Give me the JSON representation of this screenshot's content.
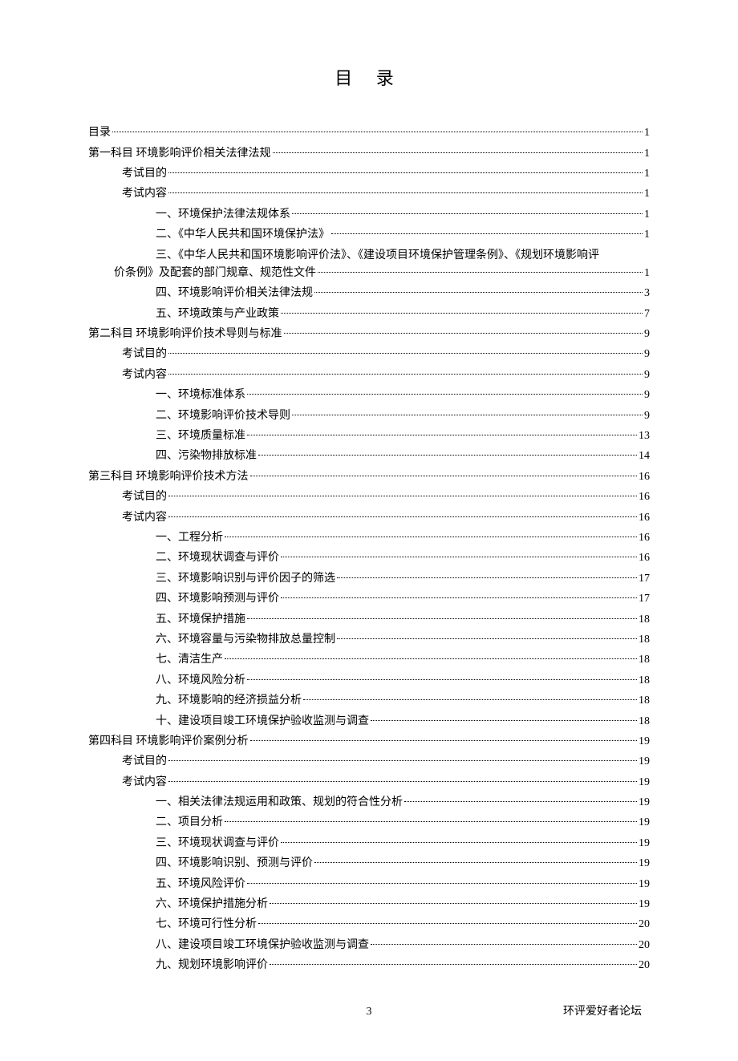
{
  "title": "目  录",
  "footer": {
    "page": "3",
    "right": "环评爱好者论坛"
  },
  "entries": [
    {
      "level": 1,
      "text": "目录",
      "page": "1"
    },
    {
      "level": 1,
      "text": "第一科目  环境影响评价相关法律法规",
      "page": "1"
    },
    {
      "level": 2,
      "text": "考试目的",
      "page": "1"
    },
    {
      "level": 2,
      "text": "考试内容",
      "page": "1"
    },
    {
      "level": 3,
      "text": "一、环境保护法律法规体系",
      "page": "1"
    },
    {
      "level": 3,
      "text": "二、《中华人民共和国环境保护法》",
      "page": "1"
    },
    {
      "level": 3,
      "wrap": true,
      "text1": "三、《中华人民共和国环境影响评价法》、《建设项目环境保护管理条例》、《规划环境影响评",
      "text2": "价条例》及配套的部门规章、规范性文件",
      "page": "1"
    },
    {
      "level": 3,
      "text": "四、环境影响评价相关法律法规",
      "page": "3"
    },
    {
      "level": 3,
      "text": "五、环境政策与产业政策",
      "page": "7"
    },
    {
      "level": 1,
      "text": "第二科目  环境影响评价技术导则与标准",
      "page": "9"
    },
    {
      "level": 2,
      "text": "考试目的",
      "page": "9"
    },
    {
      "level": 2,
      "text": "考试内容",
      "page": "9"
    },
    {
      "level": 3,
      "text": "一、环境标准体系",
      "page": "9"
    },
    {
      "level": 3,
      "text": "二、环境影响评价技术导则",
      "page": "9"
    },
    {
      "level": 3,
      "text": "三、环境质量标准",
      "page": "13"
    },
    {
      "level": 3,
      "text": "四、污染物排放标准",
      "page": "14"
    },
    {
      "level": 1,
      "text": "第三科目  环境影响评价技术方法",
      "page": "16"
    },
    {
      "level": 2,
      "text": "考试目的",
      "page": "16"
    },
    {
      "level": 2,
      "text": "考试内容",
      "page": "16"
    },
    {
      "level": 3,
      "text": "一、工程分析",
      "page": "16"
    },
    {
      "level": 3,
      "text": "二、环境现状调查与评价",
      "page": "16"
    },
    {
      "level": 3,
      "text": "三、环境影响识别与评价因子的筛选",
      "page": "17"
    },
    {
      "level": 3,
      "text": "四、环境影响预测与评价",
      "page": "17"
    },
    {
      "level": 3,
      "text": "五、环境保护措施",
      "page": "18"
    },
    {
      "level": 3,
      "text": "六、环境容量与污染物排放总量控制",
      "page": "18"
    },
    {
      "level": 3,
      "text": "七、清洁生产",
      "page": "18"
    },
    {
      "level": 3,
      "text": "八、环境风险分析",
      "page": "18"
    },
    {
      "level": 3,
      "text": "九、环境影响的经济损益分析",
      "page": "18"
    },
    {
      "level": 3,
      "text": "十、建设项目竣工环境保护验收监测与调查",
      "page": "18"
    },
    {
      "level": 1,
      "text": "第四科目  环境影响评价案例分析",
      "page": "19"
    },
    {
      "level": 2,
      "text": "考试目的",
      "page": "19"
    },
    {
      "level": 2,
      "text": "考试内容",
      "page": "19"
    },
    {
      "level": 3,
      "text": "一、相关法律法规运用和政策、规划的符合性分析",
      "page": "19"
    },
    {
      "level": 3,
      "text": "二、项目分析",
      "page": "19"
    },
    {
      "level": 3,
      "text": "三、环境现状调查与评价",
      "page": "19"
    },
    {
      "level": 3,
      "text": "四、环境影响识别、预测与评价",
      "page": "19"
    },
    {
      "level": 3,
      "text": "五、环境风险评价",
      "page": "19"
    },
    {
      "level": 3,
      "text": "六、环境保护措施分析",
      "page": "19"
    },
    {
      "level": 3,
      "text": "七、环境可行性分析",
      "page": "20"
    },
    {
      "level": 3,
      "text": "八、建设项目竣工环境保护验收监测与调查",
      "page": "20"
    },
    {
      "level": 3,
      "text": "九、规划环境影响评价",
      "page": "20"
    }
  ]
}
